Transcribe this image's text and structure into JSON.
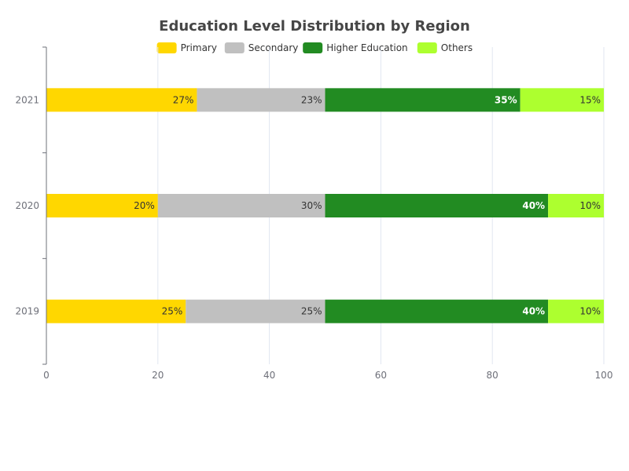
{
  "chart_data": {
    "type": "bar",
    "orientation": "horizontal",
    "stacked": true,
    "title": "Education Level Distribution by Region",
    "categories": [
      "2019",
      "2020",
      "2021"
    ],
    "series": [
      {
        "name": "Primary",
        "color": "#FFD700",
        "label_color": "#333333",
        "label_bold": false,
        "values": [
          25,
          20,
          27
        ],
        "labels": [
          "25%",
          "20%",
          "27%"
        ]
      },
      {
        "name": "Secondary",
        "color": "#C0C0C0",
        "label_color": "#333333",
        "label_bold": false,
        "values": [
          25,
          30,
          23
        ],
        "labels": [
          "25%",
          "30%",
          "23%"
        ]
      },
      {
        "name": "Higher Education",
        "color": "#228B22",
        "label_color": "#ffffff",
        "label_bold": true,
        "values": [
          40,
          40,
          35
        ],
        "labels": [
          "40%",
          "40%",
          "35%"
        ]
      },
      {
        "name": "Others",
        "color": "#ADFF2F",
        "label_color": "#333333",
        "label_bold": false,
        "values": [
          10,
          10,
          15
        ],
        "labels": [
          "10%",
          "10%",
          "15%"
        ]
      }
    ],
    "xlim": [
      0,
      100
    ],
    "xticks": [
      0,
      20,
      40,
      60,
      80,
      100
    ],
    "xtick_labels": [
      "0",
      "20",
      "40",
      "60",
      "80",
      "100"
    ],
    "grid": true,
    "legend_position": "top-center",
    "xlabel": "",
    "ylabel": ""
  }
}
